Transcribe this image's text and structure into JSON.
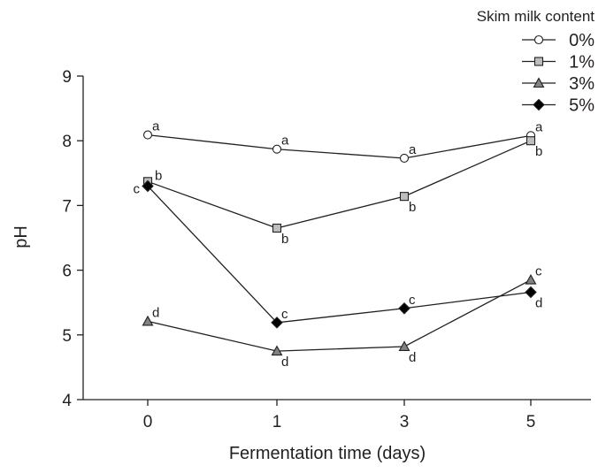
{
  "chart_data": {
    "type": "line",
    "title": "",
    "xlabel": "Fermentation time (days)",
    "ylabel": "pH",
    "categories": [
      "0",
      "1",
      "3",
      "5"
    ],
    "ylim": [
      4,
      9
    ],
    "yticks": [
      4,
      5,
      6,
      7,
      8,
      9
    ],
    "grid": false,
    "legend": {
      "title": "Skim milk content",
      "placement": "top-right"
    },
    "series": [
      {
        "name": "0%",
        "marker": "circle",
        "fill": "#ffffff",
        "values": [
          8.09,
          7.87,
          7.73,
          8.08
        ],
        "labels": [
          "a",
          "a",
          "a",
          "a"
        ],
        "label_pos": [
          "above",
          "above",
          "above",
          "above"
        ]
      },
      {
        "name": "1%",
        "marker": "square",
        "fill": "#bcbec0",
        "values": [
          7.37,
          6.65,
          7.14,
          8.0
        ],
        "labels": [
          "b",
          "b",
          "b",
          "b"
        ],
        "label_pos": [
          "right",
          "below",
          "below",
          "below"
        ]
      },
      {
        "name": "3%",
        "marker": "triangle",
        "fill": "#808285",
        "values": [
          5.21,
          4.75,
          4.82,
          5.85
        ],
        "labels": [
          "d",
          "d",
          "d",
          "c"
        ],
        "label_pos": [
          "above",
          "below",
          "below",
          "above"
        ]
      },
      {
        "name": "5%",
        "marker": "diamond",
        "fill": "#000000",
        "values": [
          7.3,
          5.19,
          5.41,
          5.66
        ],
        "labels": [
          "c",
          "c",
          "c",
          "d"
        ],
        "label_pos": [
          "left",
          "above",
          "above",
          "below"
        ]
      }
    ]
  }
}
